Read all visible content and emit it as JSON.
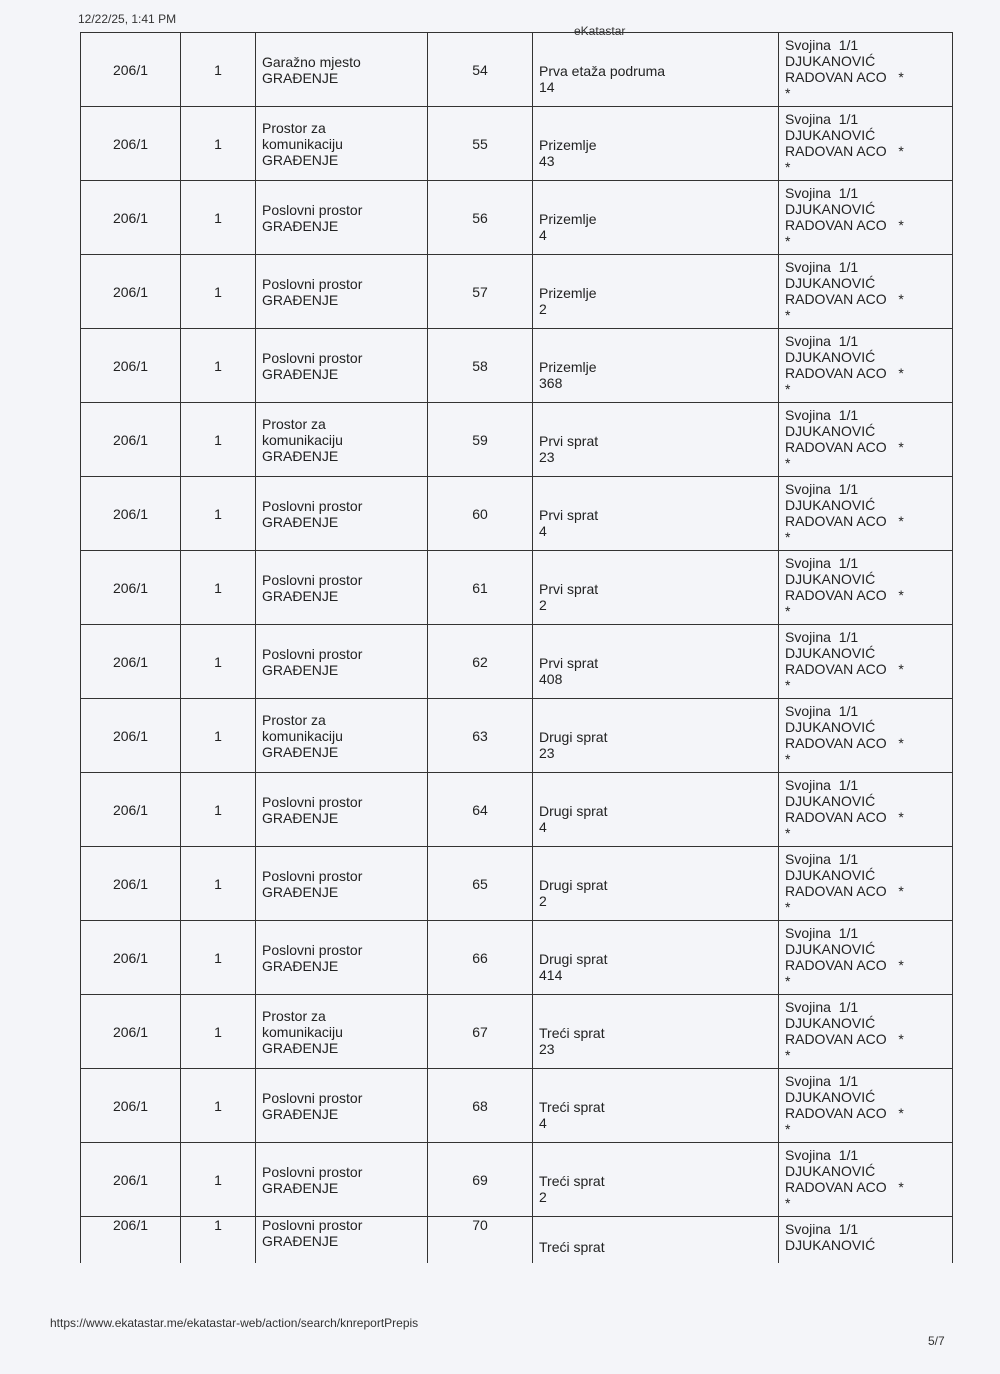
{
  "header": {
    "timestamp": "12/22/25, 1:41 PM",
    "title": "eKatastar"
  },
  "footer": {
    "url": "https://www.ekatastar.me/ekatastar-web/action/search/knreportPrepis",
    "page": "5/7"
  },
  "rows": [
    {
      "parcel": "206/1",
      "building": "1",
      "purpose": "Garažno mjesto\nGRAĐENJE",
      "number": "54",
      "floor": "Prva etaža podruma\n14",
      "owner": "Svojina  1/1\nDJUKANOVIĆ\nRADOVAN ACO   *\n*"
    },
    {
      "parcel": "206/1",
      "building": "1",
      "purpose": "Prostor za\nkomunikaciju\nGRAĐENJE",
      "number": "55",
      "floor": "Prizemlje\n43",
      "owner": "Svojina  1/1\nDJUKANOVIĆ\nRADOVAN ACO   *\n*"
    },
    {
      "parcel": "206/1",
      "building": "1",
      "purpose": "Poslovni prostor\nGRAĐENJE",
      "number": "56",
      "floor": "Prizemlje\n4",
      "owner": "Svojina  1/1\nDJUKANOVIĆ\nRADOVAN ACO   *\n*"
    },
    {
      "parcel": "206/1",
      "building": "1",
      "purpose": "Poslovni prostor\nGRAĐENJE",
      "number": "57",
      "floor": "Prizemlje\n2",
      "owner": "Svojina  1/1\nDJUKANOVIĆ\nRADOVAN ACO   *\n*"
    },
    {
      "parcel": "206/1",
      "building": "1",
      "purpose": "Poslovni prostor\nGRAĐENJE",
      "number": "58",
      "floor": "Prizemlje\n368",
      "owner": "Svojina  1/1\nDJUKANOVIĆ\nRADOVAN ACO   *\n*"
    },
    {
      "parcel": "206/1",
      "building": "1",
      "purpose": "Prostor za\nkomunikaciju\nGRAĐENJE",
      "number": "59",
      "floor": "Prvi sprat\n23",
      "owner": "Svojina  1/1\nDJUKANOVIĆ\nRADOVAN ACO   *\n*"
    },
    {
      "parcel": "206/1",
      "building": "1",
      "purpose": "Poslovni prostor\nGRAĐENJE",
      "number": "60",
      "floor": "Prvi sprat\n4",
      "owner": "Svojina  1/1\nDJUKANOVIĆ\nRADOVAN ACO   *\n*"
    },
    {
      "parcel": "206/1",
      "building": "1",
      "purpose": "Poslovni prostor\nGRAĐENJE",
      "number": "61",
      "floor": "Prvi sprat\n2",
      "owner": "Svojina  1/1\nDJUKANOVIĆ\nRADOVAN ACO   *\n*"
    },
    {
      "parcel": "206/1",
      "building": "1",
      "purpose": "Poslovni prostor\nGRAĐENJE",
      "number": "62",
      "floor": "Prvi sprat\n408",
      "owner": "Svojina  1/1\nDJUKANOVIĆ\nRADOVAN ACO   *\n*"
    },
    {
      "parcel": "206/1",
      "building": "1",
      "purpose": "Prostor za\nkomunikaciju\nGRAĐENJE",
      "number": "63",
      "floor": "Drugi sprat\n23",
      "owner": "Svojina  1/1\nDJUKANOVIĆ\nRADOVAN ACO   *\n*"
    },
    {
      "parcel": "206/1",
      "building": "1",
      "purpose": "Poslovni prostor\nGRAĐENJE",
      "number": "64",
      "floor": "Drugi sprat\n4",
      "owner": "Svojina  1/1\nDJUKANOVIĆ\nRADOVAN ACO   *\n*"
    },
    {
      "parcel": "206/1",
      "building": "1",
      "purpose": "Poslovni prostor\nGRAĐENJE",
      "number": "65",
      "floor": "Drugi sprat\n2",
      "owner": "Svojina  1/1\nDJUKANOVIĆ\nRADOVAN ACO   *\n*"
    },
    {
      "parcel": "206/1",
      "building": "1",
      "purpose": "Poslovni prostor\nGRAĐENJE",
      "number": "66",
      "floor": "Drugi sprat\n414",
      "owner": "Svojina  1/1\nDJUKANOVIĆ\nRADOVAN ACO   *\n*"
    },
    {
      "parcel": "206/1",
      "building": "1",
      "purpose": "Prostor za\nkomunikaciju\nGRAĐENJE",
      "number": "67",
      "floor": "Treći sprat\n23",
      "owner": "Svojina  1/1\nDJUKANOVIĆ\nRADOVAN ACO   *\n*"
    },
    {
      "parcel": "206/1",
      "building": "1",
      "purpose": "Poslovni prostor\nGRAĐENJE",
      "number": "68",
      "floor": "Treći sprat\n4",
      "owner": "Svojina  1/1\nDJUKANOVIĆ\nRADOVAN ACO   *\n*"
    },
    {
      "parcel": "206/1",
      "building": "1",
      "purpose": "Poslovni prostor\nGRAĐENJE",
      "number": "69",
      "floor": "Treći sprat\n2",
      "owner": "Svojina  1/1\nDJUKANOVIĆ\nRADOVAN ACO   *\n*"
    },
    {
      "parcel": "206/1",
      "building": "1",
      "purpose": "Poslovni prostor\nGRAĐENJE",
      "number": "70",
      "floor": "Treći sprat",
      "owner": "Svojina  1/1\nDJUKANOVIĆ"
    }
  ]
}
